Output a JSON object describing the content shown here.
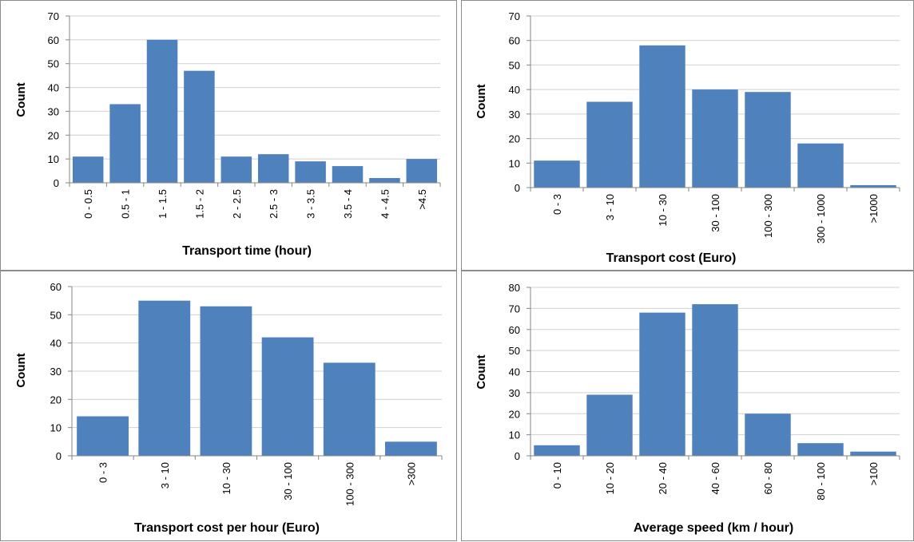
{
  "colors": {
    "bar": "#4f81bd",
    "grid": "#d0d0d0",
    "axis": "#868686",
    "border": "#8c8c8c"
  },
  "chart_data": [
    {
      "type": "bar",
      "title": "",
      "xlabel": "Transport time (hour)",
      "ylabel": "Count",
      "ylim": [
        0,
        70
      ],
      "yticks": [
        0,
        10,
        20,
        30,
        40,
        50,
        60,
        70
      ],
      "grid": true,
      "legend": "none",
      "categories": [
        "0 - 0.5",
        "0.5 - 1",
        "1 - 1.5",
        "1.5 - 2",
        "2 - 2.5",
        "2.5 - 3",
        "3 - 3.5",
        "3.5 - 4",
        "4 - 4.5",
        ">4.5"
      ],
      "values": [
        11,
        33,
        60,
        47,
        11,
        12,
        9,
        7,
        2,
        10
      ]
    },
    {
      "type": "bar",
      "title": "",
      "xlabel": "Transport cost (Euro)",
      "ylabel": "Count",
      "ylim": [
        0,
        70
      ],
      "yticks": [
        0,
        10,
        20,
        30,
        40,
        50,
        60,
        70
      ],
      "grid": true,
      "legend": "none",
      "categories": [
        "0 - 3",
        "3 - 10",
        "10 - 30",
        "30 - 100",
        "100 - 300",
        "300 - 1000",
        ">1000"
      ],
      "values": [
        11,
        35,
        58,
        40,
        39,
        18,
        1
      ]
    },
    {
      "type": "bar",
      "title": "",
      "xlabel": "Transport cost per hour (Euro)",
      "ylabel": "Count",
      "ylim": [
        0,
        60
      ],
      "yticks": [
        0,
        10,
        20,
        30,
        40,
        50,
        60
      ],
      "grid": true,
      "legend": "none",
      "categories": [
        "0 - 3",
        "3 - 10",
        "10 - 30",
        "30 - 100",
        "100 - 300",
        ">300"
      ],
      "values": [
        14,
        55,
        53,
        42,
        33,
        5
      ]
    },
    {
      "type": "bar",
      "title": "",
      "xlabel": "Average speed (km / hour)",
      "ylabel": "Count",
      "ylim": [
        0,
        80
      ],
      "yticks": [
        0,
        10,
        20,
        30,
        40,
        50,
        60,
        70,
        80
      ],
      "grid": true,
      "legend": "none",
      "categories": [
        "0 - 10",
        "10 - 20",
        "20 - 40",
        "40 - 60",
        "60 - 80",
        "80 - 100",
        ">100"
      ],
      "values": [
        5,
        29,
        68,
        72,
        20,
        6,
        2
      ]
    }
  ]
}
